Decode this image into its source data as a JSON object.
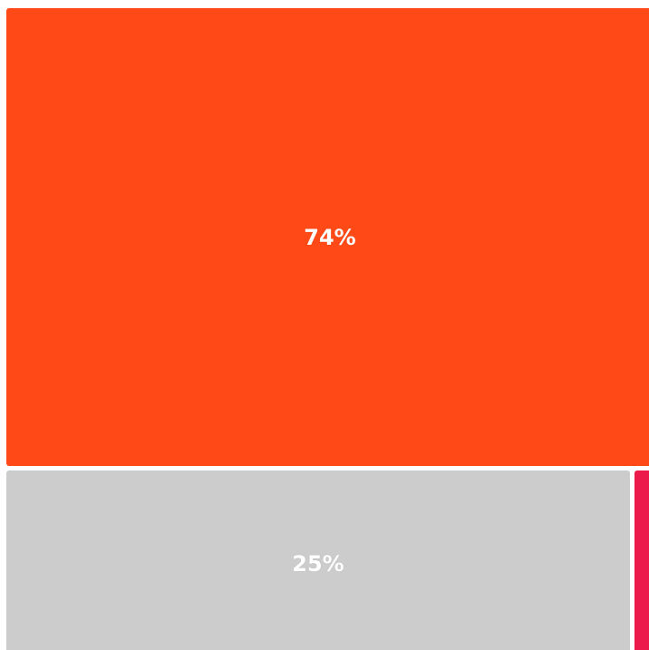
{
  "chart_data": {
    "type": "treemap",
    "items": [
      {
        "value": 74,
        "label": "74%",
        "color": "#FF4A17"
      },
      {
        "value": 25,
        "label": "25%",
        "color": "#CCCCCC"
      },
      {
        "value": 1,
        "label": "",
        "color": "#EB1A4B"
      }
    ]
  }
}
